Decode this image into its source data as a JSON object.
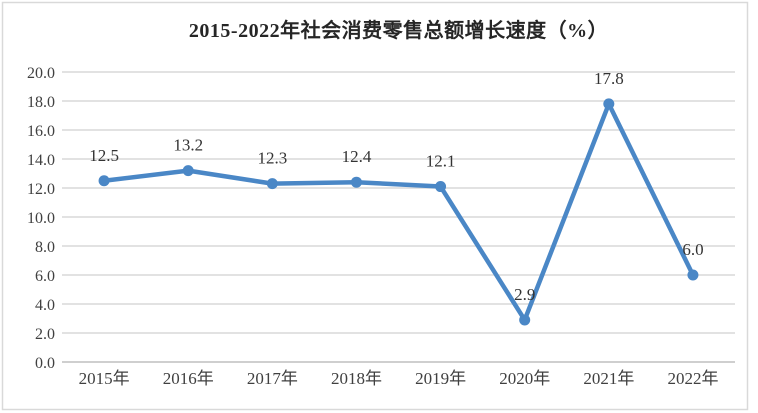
{
  "chart_data": {
    "type": "line",
    "title": "2015-2022年社会消费零售总额增长速度（%）",
    "categories": [
      "2015年",
      "2016年",
      "2017年",
      "2018年",
      "2019年",
      "2020年",
      "2021年",
      "2022年"
    ],
    "series": [
      {
        "name": "社会消费零售总额增长速度",
        "values": [
          12.5,
          13.2,
          12.3,
          12.4,
          12.1,
          2.9,
          17.8,
          6.0
        ],
        "point_labels": [
          "12.5",
          "13.2",
          "12.3",
          "12.4",
          "12.1",
          "2.9",
          "17.8",
          "6.0"
        ]
      }
    ],
    "xlabel": "",
    "ylabel": "",
    "ylim": [
      0.0,
      20.0
    ],
    "ytick_step": 2.0,
    "ytick_labels": [
      "0.0",
      "2.0",
      "4.0",
      "6.0",
      "8.0",
      "10.0",
      "12.0",
      "14.0",
      "16.0",
      "18.0",
      "20.0"
    ],
    "grid": true,
    "legend": "none",
    "marker": "circle"
  },
  "colors": {
    "line": "#4a87c6",
    "marker": "#4a87c6",
    "gridline": "#d9d9d9",
    "axis_line": "#bfbfbf",
    "border": "#d9d9d9",
    "background": "#ffffff",
    "tick_text": "#404040",
    "label_text": "#333333"
  }
}
